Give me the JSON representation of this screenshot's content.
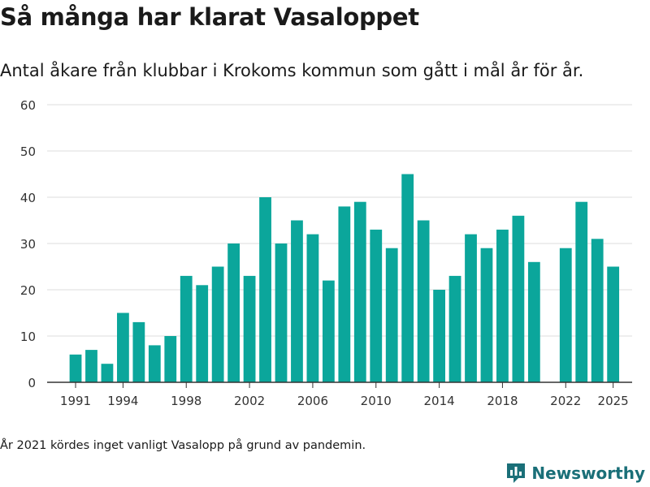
{
  "header": {
    "title": "Så många har klarat Vasaloppet",
    "subtitle": "Antal åkare från klubbar i Krokoms kommun som gått i mål år för år."
  },
  "footnote": "År 2021 kördes inget vanligt Vasalopp på grund av pandemin.",
  "brand": {
    "name": "Newsworthy",
    "logo_icon": "newsworthy-logo-icon",
    "color": "#1a6f78"
  },
  "colors": {
    "bar": "#0ba69b",
    "grid": "#dedede",
    "axis": "#333333"
  },
  "chart_data": {
    "type": "bar",
    "title": "Så många har klarat Vasaloppet",
    "xlabel": "",
    "ylabel": "",
    "ylim": [
      0,
      60
    ],
    "yticks": [
      0,
      10,
      20,
      30,
      40,
      50,
      60
    ],
    "xticks": [
      1991,
      1994,
      1998,
      2002,
      2006,
      2010,
      2014,
      2018,
      2022,
      2025
    ],
    "xlim": [
      1989.2,
      2026.2
    ],
    "grid": true,
    "categories": [
      1991,
      1992,
      1993,
      1994,
      1995,
      1996,
      1997,
      1998,
      1999,
      2000,
      2001,
      2002,
      2003,
      2004,
      2005,
      2006,
      2007,
      2008,
      2009,
      2010,
      2011,
      2012,
      2013,
      2014,
      2015,
      2016,
      2017,
      2018,
      2019,
      2020,
      2022,
      2023,
      2024,
      2025
    ],
    "values": [
      6,
      7,
      4,
      15,
      13,
      8,
      10,
      23,
      21,
      25,
      30,
      23,
      40,
      30,
      35,
      32,
      22,
      38,
      39,
      33,
      29,
      45,
      35,
      20,
      23,
      32,
      29,
      33,
      36,
      26,
      29,
      39,
      31,
      25
    ]
  }
}
